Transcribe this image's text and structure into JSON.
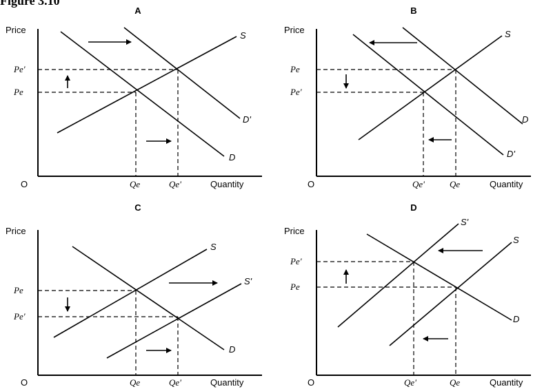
{
  "figure": {
    "title": "Figure 3.10"
  },
  "panels": [
    {
      "letter": "A",
      "y_axis": "Price",
      "x_axis": "Quantity",
      "origin": "O",
      "price_ticks": [
        "Pe'",
        "Pe"
      ],
      "quantity_ticks": [
        "Qe",
        "Qe'"
      ],
      "curves": [
        "S",
        "D'",
        "D"
      ]
    },
    {
      "letter": "B",
      "y_axis": "Price",
      "x_axis": "Quantity",
      "origin": "O",
      "price_ticks": [
        "Pe",
        "Pe'"
      ],
      "quantity_ticks": [
        "Qe'",
        "Qe"
      ],
      "curves": [
        "S",
        "D",
        "D'"
      ]
    },
    {
      "letter": "C",
      "y_axis": "Price",
      "x_axis": "Quantity",
      "origin": "O",
      "price_ticks": [
        "Pe",
        "Pe'"
      ],
      "quantity_ticks": [
        "Qe",
        "Qe'"
      ],
      "curves": [
        "S",
        "S'",
        "D"
      ]
    },
    {
      "letter": "D",
      "y_axis": "Price",
      "x_axis": "Quantity",
      "origin": "O",
      "price_ticks": [
        "Pe'",
        "Pe"
      ],
      "quantity_ticks": [
        "Qe'",
        "Qe"
      ],
      "curves": [
        "S'",
        "S",
        "D"
      ]
    }
  ]
}
